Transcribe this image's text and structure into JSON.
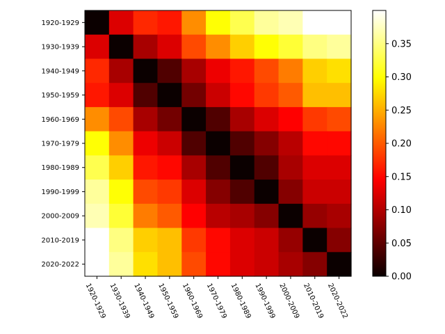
{
  "chart_data": {
    "type": "heatmap",
    "title": "",
    "xlabel": "",
    "ylabel": "",
    "rows": [
      "1920-1929",
      "1930-1939",
      "1940-1949",
      "1950-1959",
      "1960-1969",
      "1970-1979",
      "1980-1989",
      "1990-1999",
      "2000-2009",
      "2010-2019",
      "2020-2022"
    ],
    "columns": [
      "1920-1929",
      "1930-1939",
      "1940-1949",
      "1950-1959",
      "1960-1969",
      "1970-1979",
      "1980-1989",
      "1990-1999",
      "2000-2009",
      "2010-2019",
      "2020-2022"
    ],
    "values": [
      [
        0.0,
        0.12,
        0.17,
        0.16,
        0.23,
        0.3,
        0.33,
        0.36,
        0.37,
        0.4,
        0.4
      ],
      [
        0.12,
        0.0,
        0.09,
        0.12,
        0.19,
        0.23,
        0.27,
        0.3,
        0.32,
        0.35,
        0.36
      ],
      [
        0.17,
        0.09,
        0.0,
        0.04,
        0.09,
        0.13,
        0.16,
        0.19,
        0.22,
        0.27,
        0.28
      ],
      [
        0.16,
        0.12,
        0.04,
        0.0,
        0.06,
        0.11,
        0.15,
        0.18,
        0.2,
        0.26,
        0.26
      ],
      [
        0.23,
        0.19,
        0.09,
        0.06,
        0.0,
        0.04,
        0.09,
        0.12,
        0.14,
        0.18,
        0.19
      ],
      [
        0.3,
        0.23,
        0.13,
        0.11,
        0.04,
        0.0,
        0.04,
        0.07,
        0.1,
        0.15,
        0.15
      ],
      [
        0.33,
        0.27,
        0.16,
        0.15,
        0.09,
        0.04,
        0.0,
        0.04,
        0.09,
        0.12,
        0.12
      ],
      [
        0.36,
        0.3,
        0.19,
        0.18,
        0.12,
        0.07,
        0.04,
        0.0,
        0.07,
        0.11,
        0.11
      ],
      [
        0.37,
        0.32,
        0.22,
        0.2,
        0.14,
        0.1,
        0.09,
        0.07,
        0.0,
        0.08,
        0.09
      ],
      [
        0.4,
        0.35,
        0.27,
        0.26,
        0.18,
        0.15,
        0.12,
        0.11,
        0.08,
        0.0,
        0.07
      ],
      [
        0.4,
        0.36,
        0.28,
        0.26,
        0.19,
        0.15,
        0.12,
        0.11,
        0.09,
        0.07,
        0.0
      ]
    ],
    "colormap": "hot",
    "colorbar": {
      "range": [
        0.0,
        0.4
      ],
      "ticks": [
        0.0,
        0.05,
        0.1,
        0.15,
        0.2,
        0.25,
        0.3,
        0.35
      ],
      "tick_labels": [
        "0.00",
        "0.05",
        "0.10",
        "0.15",
        "0.20",
        "0.25",
        "0.30",
        "0.35"
      ]
    }
  }
}
